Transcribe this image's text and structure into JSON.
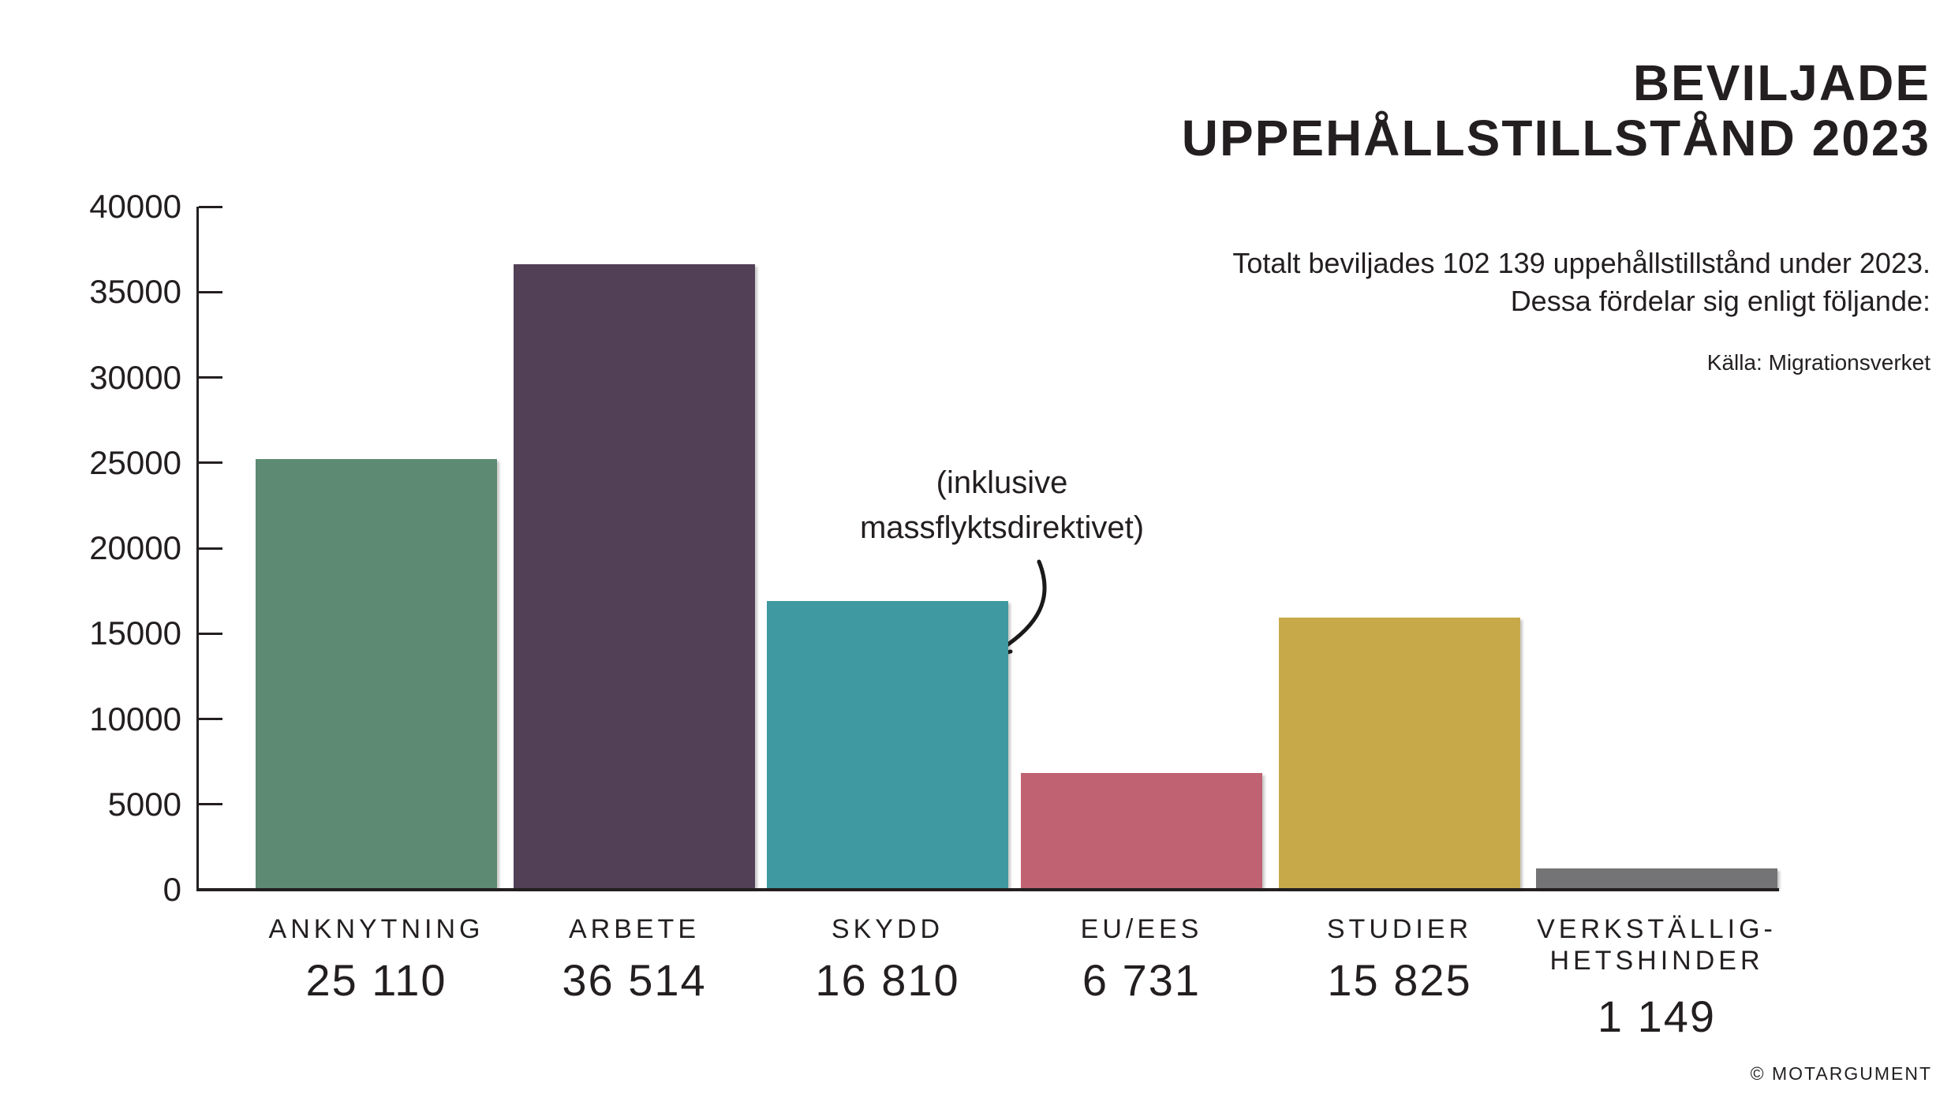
{
  "title": {
    "line1": "BEVILJADE",
    "line2": "UPPEHÅLLSTILLSTÅND 2023"
  },
  "subtitle": {
    "line1": "Totalt beviljades 102 139 uppehållstillstånd under 2023.",
    "line2": "Dessa fördelar sig enligt följande:"
  },
  "source": "Källa: Migrationsverket",
  "annotation": {
    "line1": "(inklusive",
    "line2": "massflyktsdirektivet)"
  },
  "footer": "© MOTARGUMENT",
  "colors": {
    "text": "#231f20",
    "background": "#ffffff",
    "arrow": "#1a1a1a"
  },
  "chart_data": {
    "type": "bar",
    "title": "BEVILJADE UPPEHÅLLSTILLSTÅND 2023",
    "subtitle": "Totalt beviljades 102 139 uppehållstillstånd under 2023. Dessa fördelar sig enligt följande:",
    "source": "Källa: Migrationsverket",
    "total": 102139,
    "categories": [
      "ANKNYTNING",
      "ARBETE",
      "SKYDD",
      "EU/EES",
      "STUDIER",
      "VERKSTÄLLIG-\nHETSHINDER"
    ],
    "values": [
      25110,
      36514,
      16810,
      6731,
      15825,
      1149
    ],
    "value_labels": [
      "25 110",
      "36 514",
      "16 810",
      "6 731",
      "15 825",
      "1 149"
    ],
    "bar_colors": [
      "#5c8a72",
      "#524057",
      "#3e99a1",
      "#c06271",
      "#c7a94a",
      "#747476"
    ],
    "annotation": {
      "text": "(inklusive massflyktsdirektivet)",
      "target_category": "SKYDD"
    },
    "xlabel": "",
    "ylabel": "",
    "ylim": [
      0,
      40000
    ],
    "yticks": [
      0,
      5000,
      10000,
      15000,
      20000,
      25000,
      30000,
      35000,
      40000
    ],
    "grid": false,
    "legend": false
  }
}
